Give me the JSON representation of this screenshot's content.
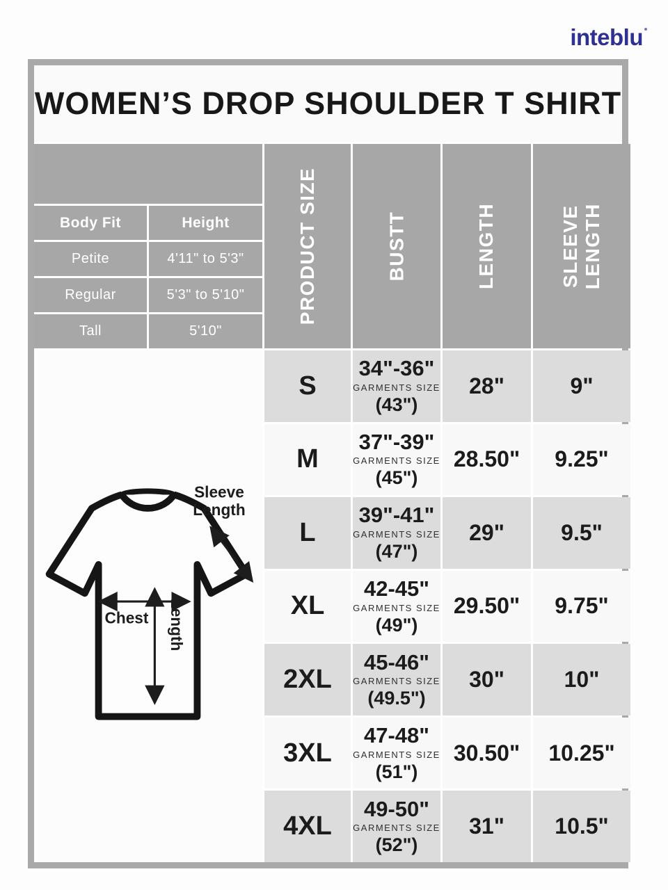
{
  "brand": {
    "name": "inteblu"
  },
  "title": "WOMEN’S DROP SHOULDER T SHIRT",
  "body_fit_table": {
    "headers": [
      "Body Fit",
      "Height"
    ],
    "rows": [
      [
        "Petite",
        "4'11\" to 5'3\""
      ],
      [
        "Regular",
        "5'3\" to 5'10\""
      ],
      [
        "Tall",
        "5'10\""
      ]
    ]
  },
  "size_table": {
    "column_headers": [
      "PRODUCT SIZE",
      "BUSTT",
      "LENGTH",
      "SLEEVE LENGTH"
    ],
    "garments_size_label": "GARMENTS SIZE",
    "rows": [
      {
        "size": "S",
        "bust_range": "34\"-36\"",
        "garment_bust": "(43\")",
        "length": "28\"",
        "sleeve_length": "9\""
      },
      {
        "size": "M",
        "bust_range": "37\"-39\"",
        "garment_bust": "(45\")",
        "length": "28.50\"",
        "sleeve_length": "9.25\""
      },
      {
        "size": "L",
        "bust_range": "39\"-41\"",
        "garment_bust": "(47\")",
        "length": "29\"",
        "sleeve_length": "9.5\""
      },
      {
        "size": "XL",
        "bust_range": "42-45\"",
        "garment_bust": "(49\")",
        "length": "29.50\"",
        "sleeve_length": "9.75\""
      },
      {
        "size": "2XL",
        "bust_range": "45-46\"",
        "garment_bust": "(49.5\")",
        "length": "30\"",
        "sleeve_length": "10\""
      },
      {
        "size": "3XL",
        "bust_range": "47-48\"",
        "garment_bust": "(51\")",
        "length": "30.50\"",
        "sleeve_length": "10.25\""
      },
      {
        "size": "4XL",
        "bust_range": "49-50\"",
        "garment_bust": "(52\")",
        "length": "31\"",
        "sleeve_length": "10.5\""
      }
    ]
  },
  "diagram_labels": {
    "sleeve_line1": "Sleeve",
    "sleeve_line2": "Length",
    "chest": "Chest",
    "length": "Length"
  },
  "colors": {
    "outer_border_gray": "#a9a9a9",
    "header_gray": "#a7a7a7",
    "row_gray": "#dcdcdc",
    "row_light": "#f8f8f8",
    "logo_blue": "#2e3192",
    "logo_light_blue": "#29abe2",
    "logo_purple": "#8c6bc8",
    "text_dark": "#1b1b1b"
  }
}
